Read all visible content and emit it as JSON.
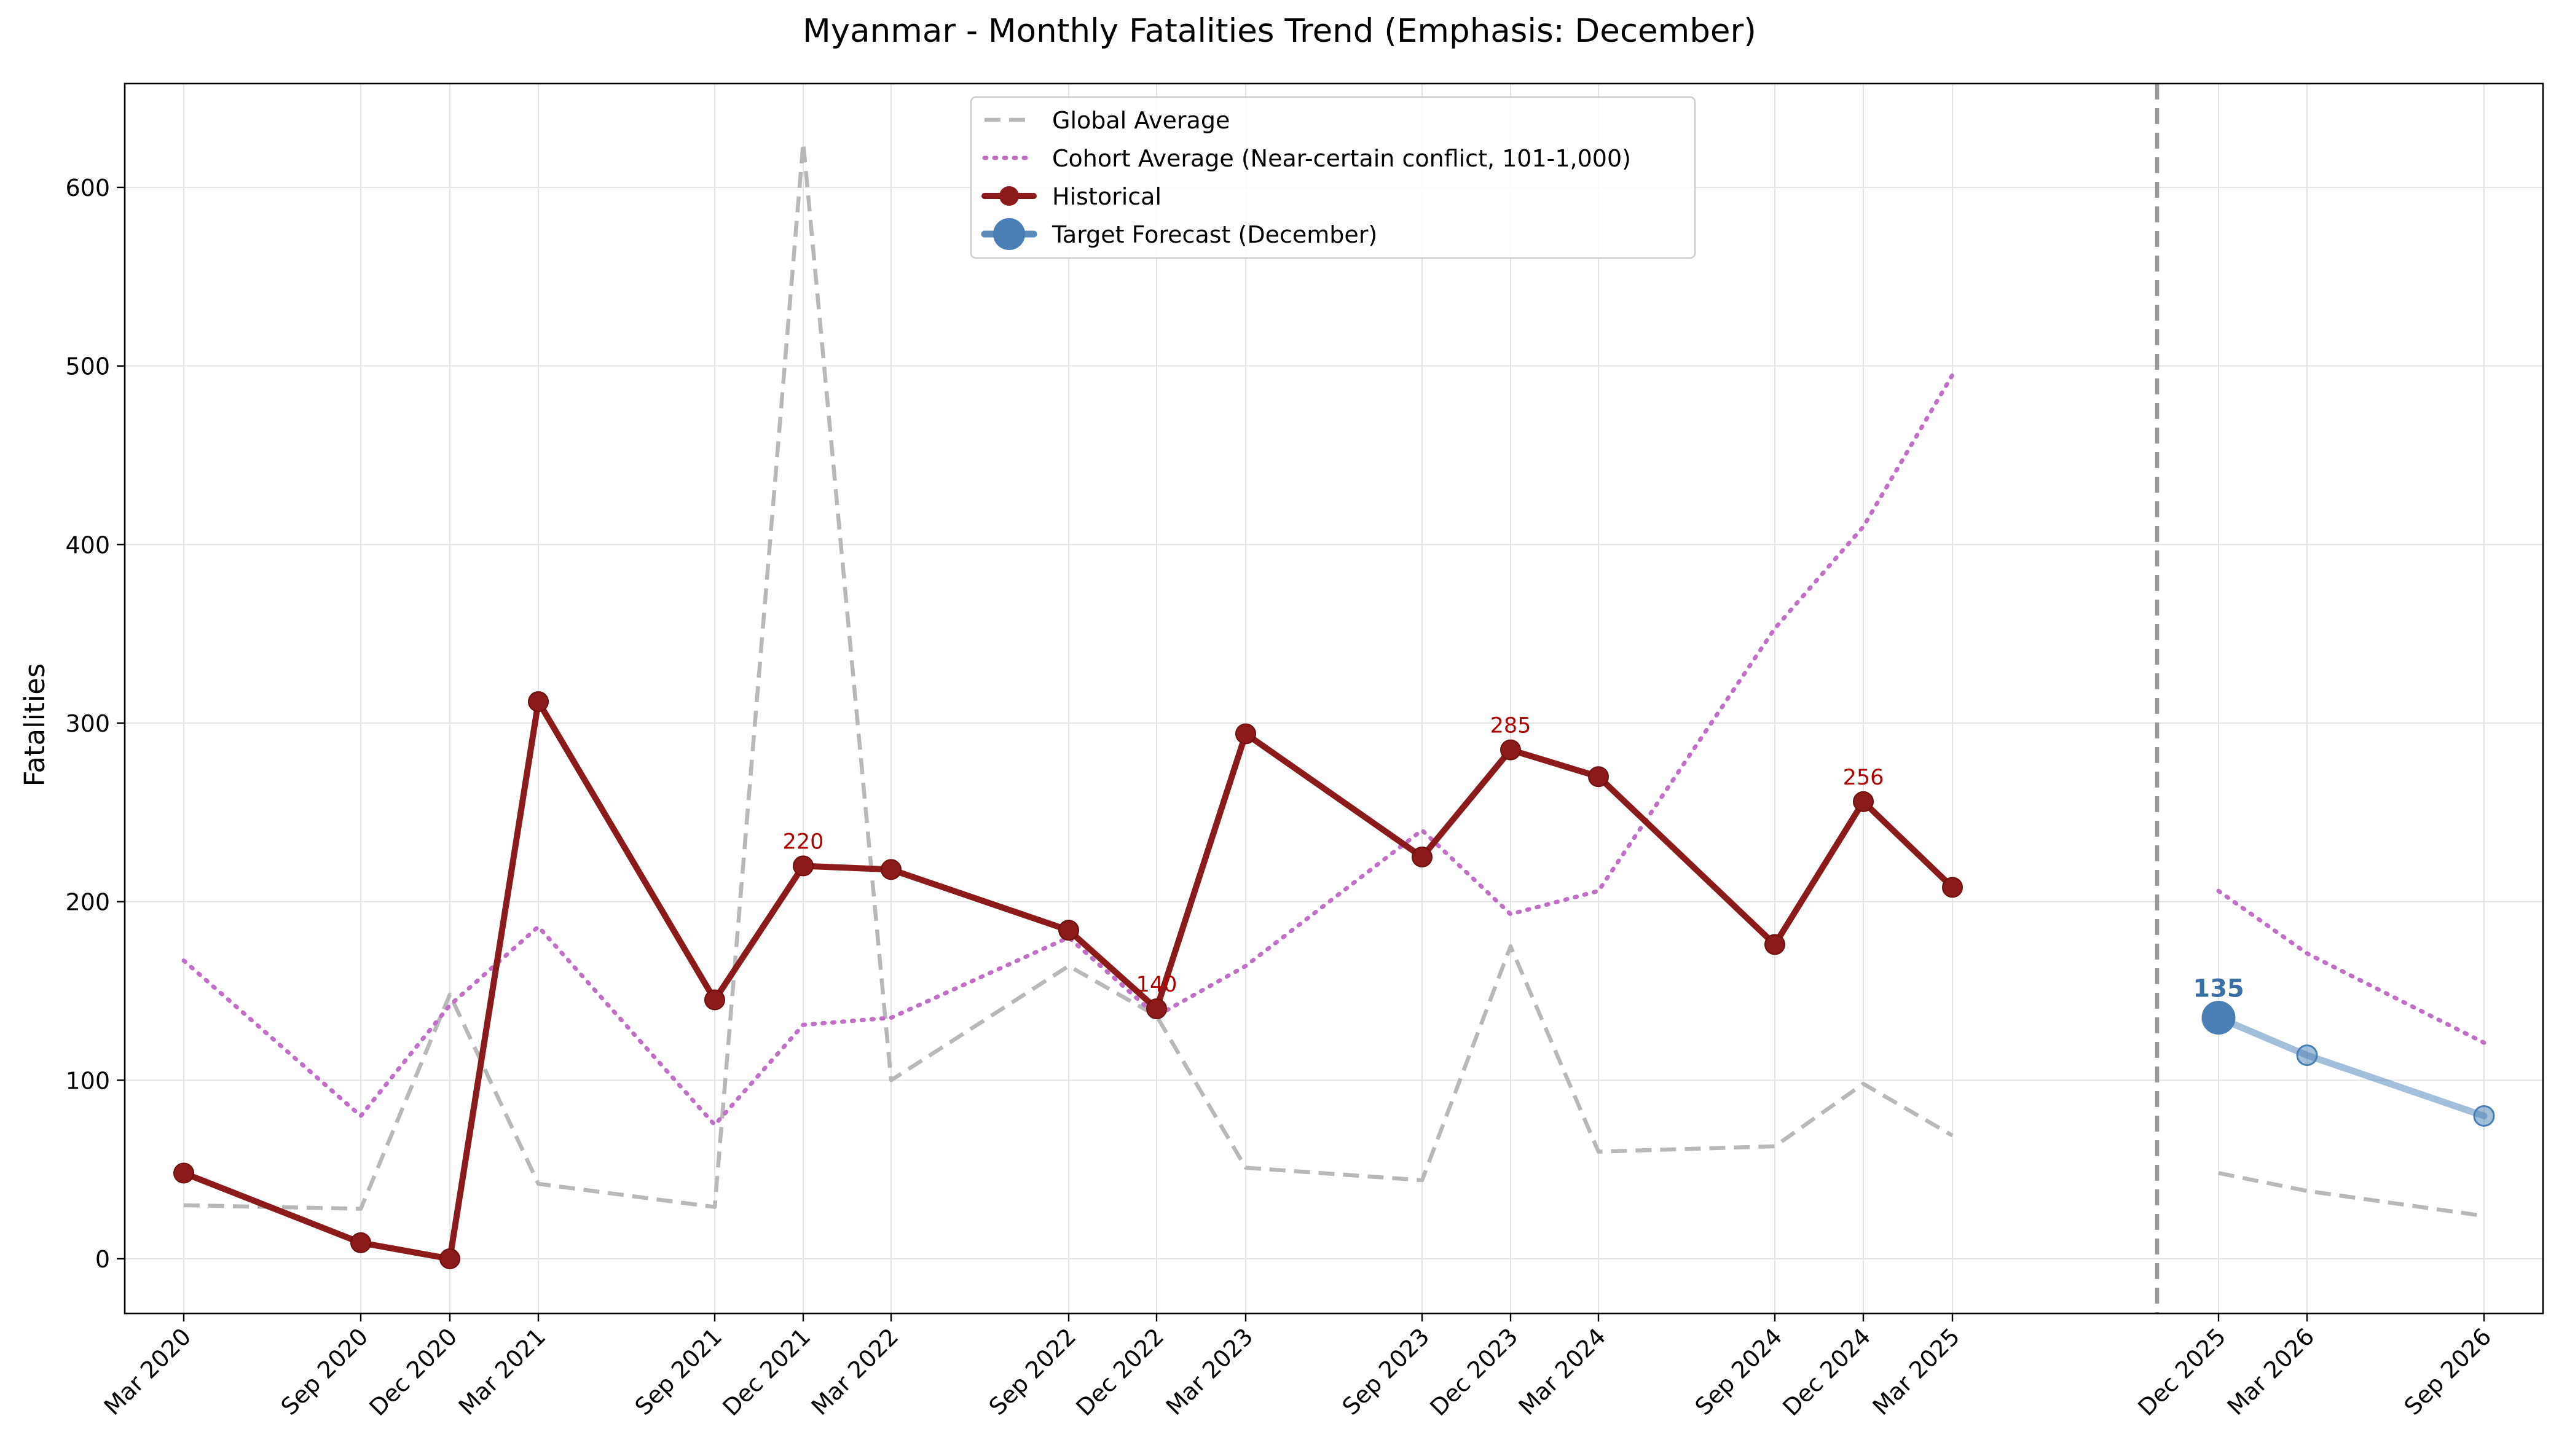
{
  "chart_data": {
    "type": "line",
    "title": "Myanmar - Monthly Fatalities Trend (Emphasis: December)",
    "xlabel": "",
    "ylabel": "Fatalities",
    "ylim": [
      -30,
      660
    ],
    "yticks": [
      0,
      100,
      200,
      300,
      400,
      500,
      600
    ],
    "grid": true,
    "legend_position": "top-center",
    "x_categories": [
      "Mar 2020",
      "Sep 2020",
      "Dec 2020",
      "Mar 2021",
      "Sep 2021",
      "Dec 2021",
      "Mar 2022",
      "Sep 2022",
      "Dec 2022",
      "Mar 2023",
      "Sep 2023",
      "Dec 2023",
      "Mar 2024",
      "Sep 2024",
      "Dec 2024",
      "Mar 2025",
      "Dec 2025",
      "Mar 2026",
      "Sep 2026"
    ],
    "separator_at": "Dec 2025",
    "series": [
      {
        "name": "Global Average",
        "style": "dashed",
        "color": "#b8b8b8",
        "segments": [
          {
            "x": [
              "Mar 2020",
              "Sep 2020",
              "Dec 2020",
              "Mar 2021",
              "Sep 2021",
              "Dec 2021",
              "Mar 2022",
              "Sep 2022",
              "Dec 2022",
              "Mar 2023",
              "Sep 2023",
              "Dec 2023",
              "Mar 2024",
              "Sep 2024",
              "Dec 2024",
              "Mar 2025"
            ],
            "values": [
              30,
              28,
              148,
              42,
              29,
              625,
              100,
              164,
              136,
              51,
              44,
              175,
              60,
              63,
              98,
              69
            ]
          },
          {
            "x": [
              "Dec 2025",
              "Mar 2026",
              "Sep 2026"
            ],
            "values": [
              48,
              38,
              24
            ]
          }
        ]
      },
      {
        "name": "Cohort Average (Near-certain conflict, 101-1,000)",
        "style": "dotted",
        "color": "#bf6fc4",
        "segments": [
          {
            "x": [
              "Mar 2020",
              "Sep 2020",
              "Dec 2020",
              "Mar 2021",
              "Sep 2021",
              "Dec 2021",
              "Mar 2022",
              "Sep 2022",
              "Dec 2022",
              "Mar 2023",
              "Sep 2023",
              "Dec 2023",
              "Mar 2024",
              "Sep 2024",
              "Dec 2024",
              "Mar 2025"
            ],
            "values": [
              167,
              80,
              142,
              186,
              75,
              131,
              135,
              180,
              136,
              164,
              240,
              193,
              206,
              353,
              410,
              495
            ]
          },
          {
            "x": [
              "Dec 2025",
              "Mar 2026",
              "Sep 2026"
            ],
            "values": [
              206,
              171,
              121
            ]
          }
        ]
      },
      {
        "name": "Historical",
        "style": "solid-marker",
        "color": "#8b1a1a",
        "segments": [
          {
            "x": [
              "Mar 2020",
              "Sep 2020",
              "Dec 2020",
              "Mar 2021",
              "Sep 2021",
              "Dec 2021",
              "Mar 2022",
              "Sep 2022",
              "Dec 2022",
              "Mar 2023",
              "Sep 2023",
              "Dec 2023",
              "Mar 2024",
              "Sep 2024",
              "Dec 2024",
              "Mar 2025"
            ],
            "values": [
              48,
              9,
              0,
              312,
              145,
              220,
              218,
              184,
              140,
              294,
              225,
              285,
              270,
              176,
              256,
              208
            ]
          }
        ]
      },
      {
        "name": "Target Forecast (December)",
        "style": "forecast",
        "color": "#4a7fb5",
        "segments": [
          {
            "x": [
              "Dec 2025",
              "Mar 2026",
              "Sep 2026"
            ],
            "values": [
              135,
              114,
              80
            ]
          }
        ]
      }
    ],
    "annotations": [
      {
        "x": "Dec 2021",
        "value": 220,
        "label": "220",
        "color": "#b00000"
      },
      {
        "x": "Dec 2022",
        "value": 140,
        "label": "140",
        "color": "#b00000"
      },
      {
        "x": "Dec 2023",
        "value": 285,
        "label": "285",
        "color": "#b00000"
      },
      {
        "x": "Dec 2024",
        "value": 256,
        "label": "256",
        "color": "#b00000"
      },
      {
        "x": "Dec 2025",
        "value": 135,
        "label": "135",
        "color": "#3a6fa5"
      }
    ]
  }
}
